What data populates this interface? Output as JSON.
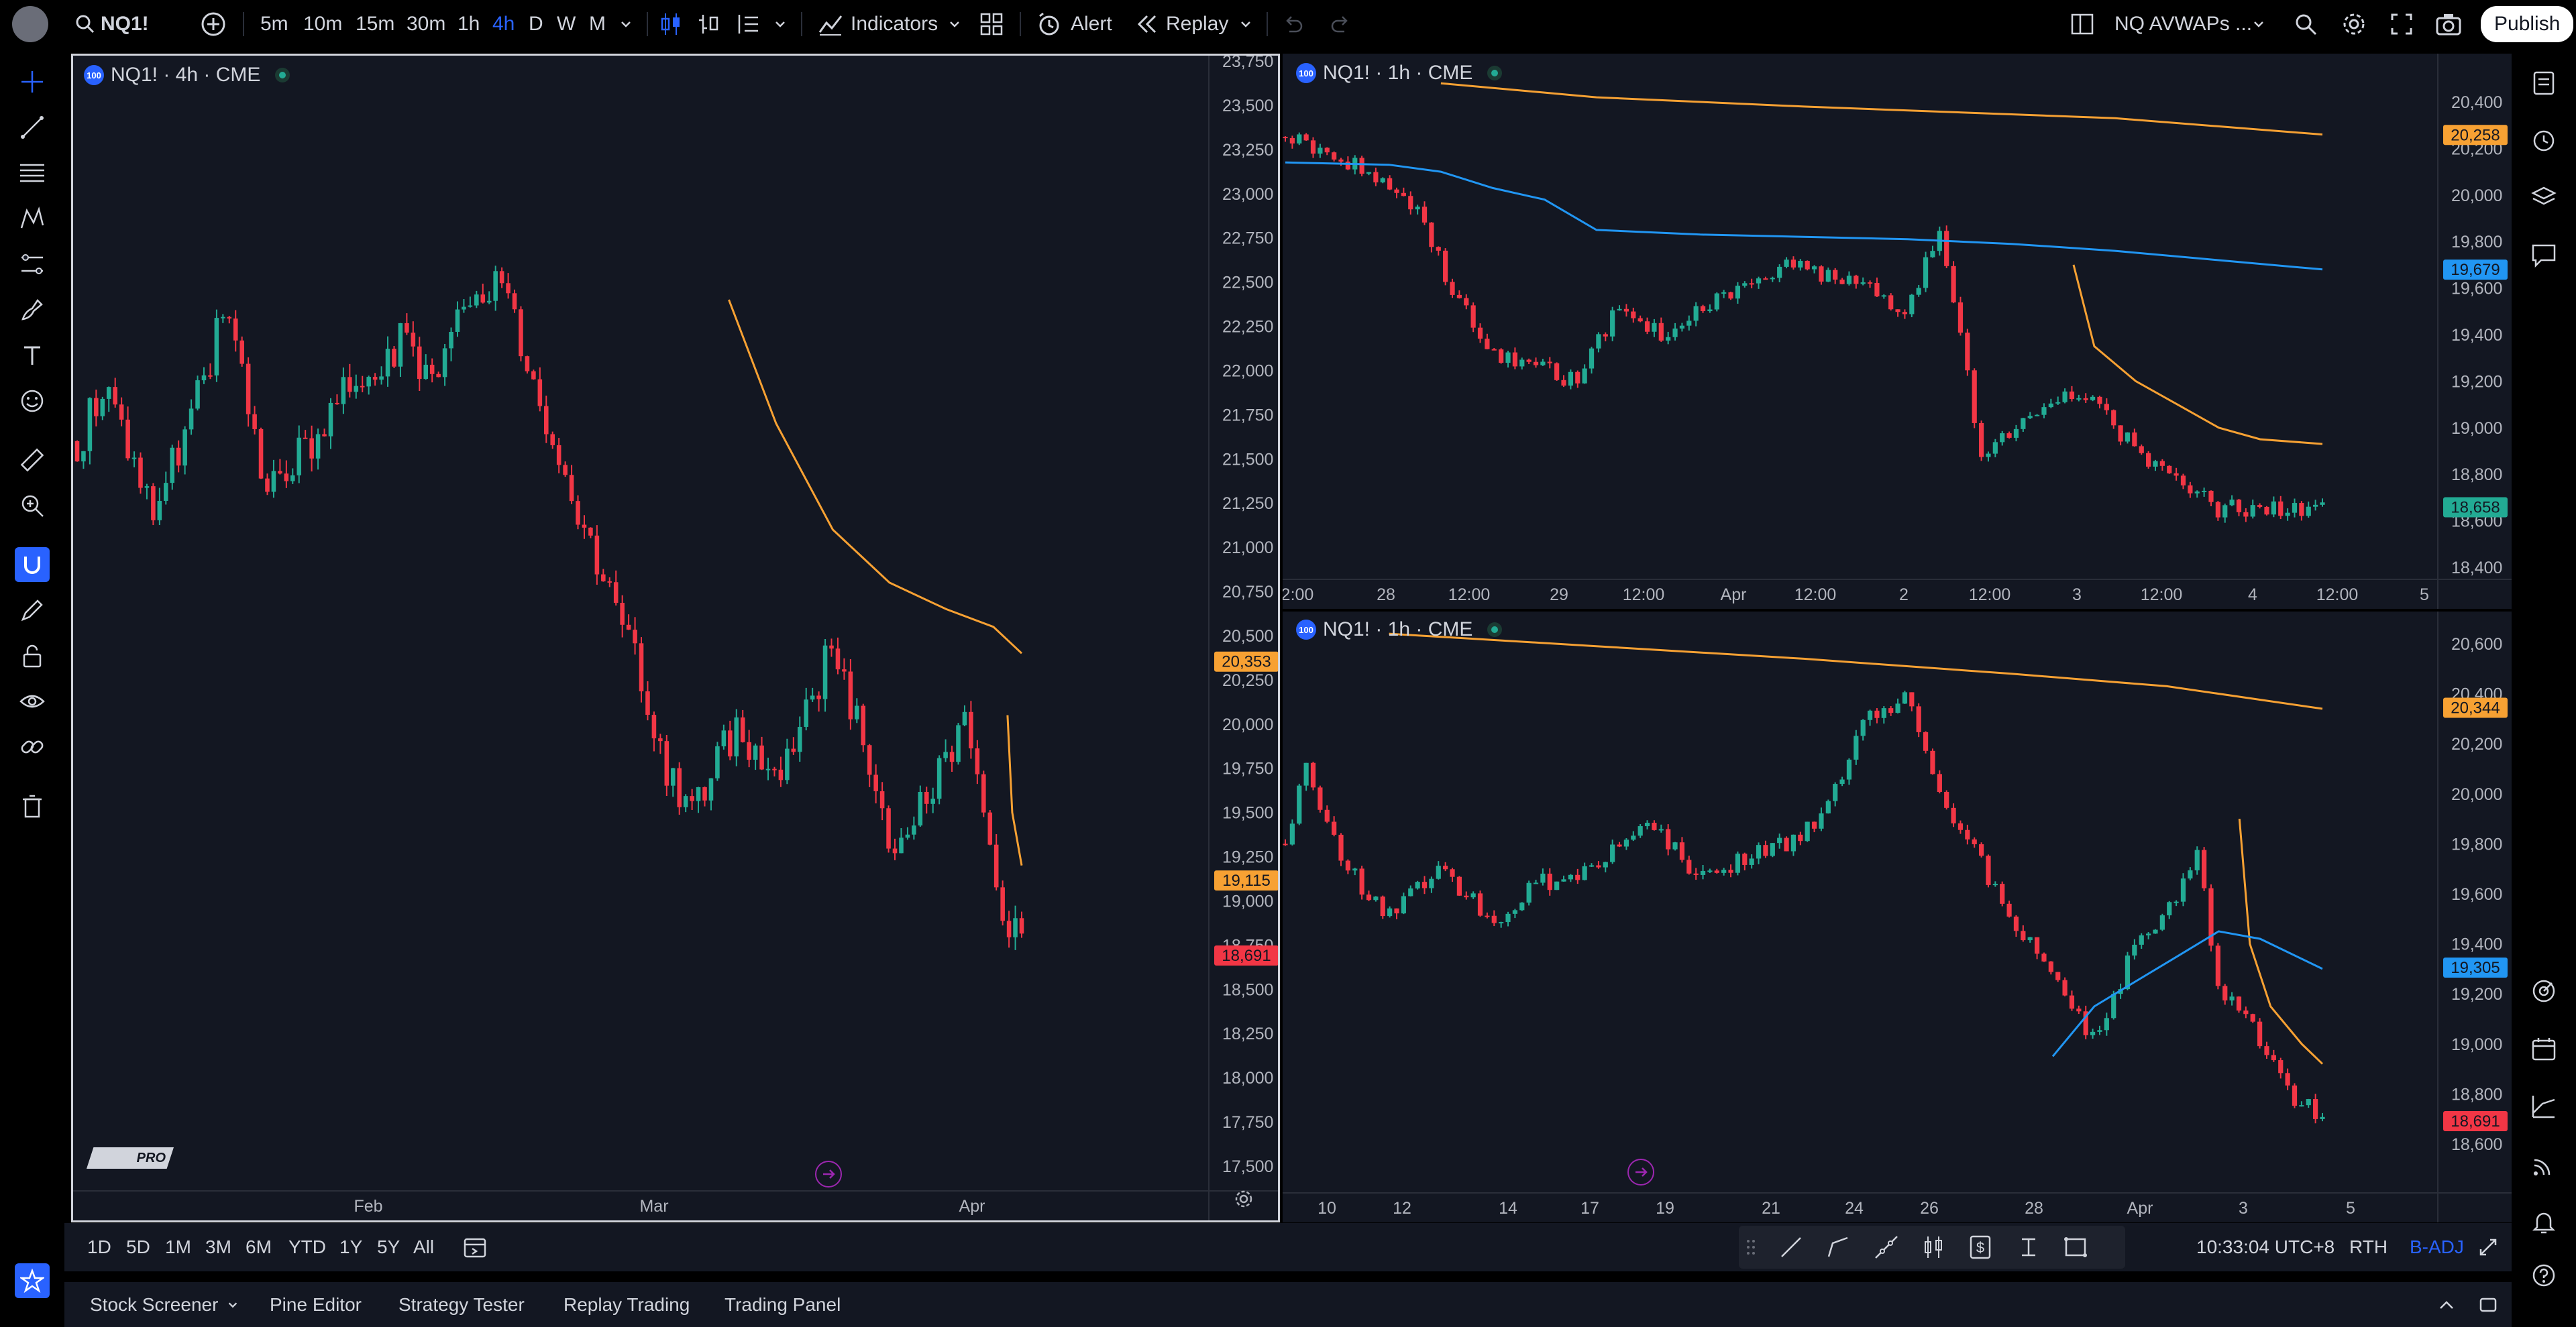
{
  "toolbar": {
    "symbol": "NQ1!",
    "intervals": [
      "5m",
      "10m",
      "15m",
      "30m",
      "1h",
      "4h",
      "D",
      "W",
      "M"
    ],
    "active_interval": "4h",
    "indicators_label": "Indicators",
    "alert_label": "Alert",
    "replay_label": "Replay",
    "layout_name": "NQ AVWAPs ...",
    "publish_label": "Publish"
  },
  "panes": {
    "left": {
      "title": "NQ1! · 4h · CME",
      "price_labels": [
        "23,750",
        "23,500",
        "23,250",
        "23,000",
        "22,750",
        "22,500",
        "22,250",
        "22,000",
        "21,750",
        "21,500",
        "21,250",
        "21,000",
        "20,750",
        "20,500",
        "20,250",
        "20,000",
        "19,750",
        "19,500",
        "19,250",
        "19,000",
        "18,750",
        "18,500",
        "18,250",
        "18,000",
        "17,750",
        "17,500"
      ],
      "tags": [
        {
          "value": "20,353",
          "color": "#f7a133"
        },
        {
          "value": "19,115",
          "color": "#f7a133"
        },
        {
          "value": "18,691",
          "color": "#f23645"
        }
      ],
      "time_labels": [
        "Feb",
        "Mar",
        "Apr"
      ]
    },
    "top_right": {
      "title": "NQ1! · 1h · CME",
      "price_labels": [
        "20,400",
        "20,200",
        "20,000",
        "19,800",
        "19,600",
        "19,400",
        "19,200",
        "19,000",
        "18,800",
        "18,600",
        "18,400"
      ],
      "tags": [
        {
          "value": "20,258",
          "color": "#f7a133"
        },
        {
          "value": "19,679",
          "color": "#2196f3"
        },
        {
          "value": "18,658",
          "color": "#22ab94"
        }
      ],
      "time_labels": [
        "2:00",
        "28",
        "12:00",
        "29",
        "12:00",
        "Apr",
        "12:00",
        "2",
        "12:00",
        "3",
        "12:00",
        "4",
        "12:00",
        "5"
      ]
    },
    "bottom_right": {
      "title": "NQ1! · 1h · CME",
      "price_labels": [
        "20,600",
        "20,400",
        "20,200",
        "20,000",
        "19,800",
        "19,600",
        "19,400",
        "19,200",
        "19,000",
        "18,800",
        "18,600"
      ],
      "tags": [
        {
          "value": "20,344",
          "color": "#f7a133"
        },
        {
          "value": "19,305",
          "color": "#2196f3"
        },
        {
          "value": "18,691",
          "color": "#f23645"
        }
      ],
      "time_labels": [
        "10",
        "12",
        "14",
        "17",
        "19",
        "21",
        "24",
        "26",
        "28",
        "Apr",
        "3",
        "5"
      ]
    }
  },
  "logo_text": "PRO",
  "range_buttons": [
    "1D",
    "5D",
    "1M",
    "3M",
    "6M",
    "YTD",
    "1Y",
    "5Y",
    "All"
  ],
  "status": {
    "time": "10:33:04 UTC+8",
    "session": "RTH",
    "adj": "B-ADJ"
  },
  "bottom_tabs": [
    "Stock Screener",
    "Pine Editor",
    "Strategy Tester",
    "Replay Trading",
    "Trading Panel"
  ],
  "colors": {
    "up": "#22ab94",
    "down": "#f23645",
    "orange": "#f7a133",
    "blue": "#2196f3",
    "accent": "#2962ff",
    "background": "#131722"
  }
}
